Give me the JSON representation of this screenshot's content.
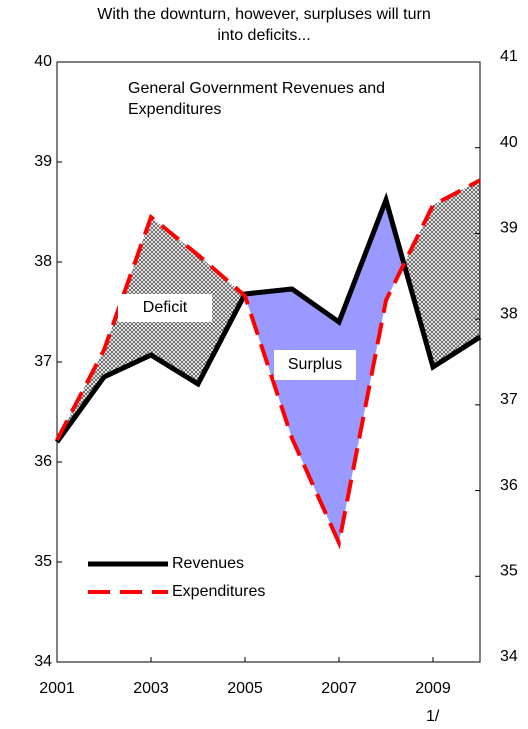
{
  "chart_data": {
    "type": "line",
    "title": "With the downturn, however, surpluses will turn into deficits...",
    "annotation": "General Government Revenues and Expenditures",
    "labels": [
      "Deficit",
      "Surplus"
    ],
    "note": "1/",
    "x": [
      2001,
      2002,
      2003,
      2004,
      2005,
      2006,
      2007,
      2008,
      2009,
      2010
    ],
    "xlim": [
      2001,
      2010
    ],
    "xticks": [
      2001,
      2003,
      2005,
      2007,
      2009
    ],
    "ylim": [
      34,
      40
    ],
    "yticks": [
      34,
      35,
      36,
      37,
      38,
      39,
      40
    ],
    "y2lim": [
      34,
      41
    ],
    "y2ticks": [
      34,
      35,
      36,
      37,
      38,
      39,
      40,
      41
    ],
    "series": [
      {
        "name": "Revenues",
        "color": "#000000",
        "values": [
          36.2,
          36.85,
          37.07,
          36.78,
          37.68,
          37.73,
          37.4,
          38.62,
          36.95,
          37.25
        ]
      },
      {
        "name": "Expenditures",
        "color": "#ff0000",
        "axis": "y2",
        "values": [
          36.59,
          37.64,
          39.19,
          38.75,
          38.27,
          36.61,
          35.39,
          38.22,
          39.33,
          39.62
        ]
      }
    ],
    "legend": "lower left"
  }
}
